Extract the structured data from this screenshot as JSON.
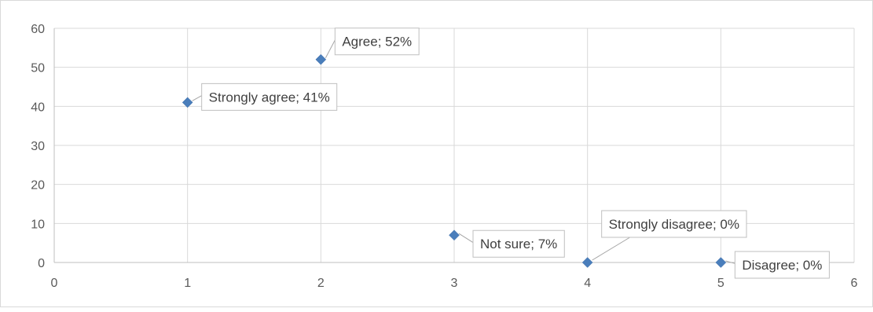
{
  "chart_data": {
    "type": "scatter",
    "title": "",
    "xlabel": "",
    "ylabel": "",
    "xlim": [
      0,
      6
    ],
    "ylim": [
      0,
      60
    ],
    "x_ticks": [
      "0",
      "1",
      "2",
      "3",
      "4",
      "5",
      "6"
    ],
    "y_ticks": [
      "0",
      "10",
      "20",
      "30",
      "40",
      "50",
      "60"
    ],
    "grid": true,
    "legend": "none",
    "marker": "diamond",
    "marker_color": "#4a7ebb",
    "points": [
      {
        "x": 1,
        "y": 41,
        "label": "Strongly agree; 41%"
      },
      {
        "x": 2,
        "y": 52,
        "label": "Agree; 52%"
      },
      {
        "x": 3,
        "y": 7,
        "label": "Not sure; 7%"
      },
      {
        "x": 4,
        "y": 0,
        "label": "Strongly disagree; 0%"
      },
      {
        "x": 5,
        "y": 0,
        "label": "Disagree; 0%"
      }
    ]
  }
}
